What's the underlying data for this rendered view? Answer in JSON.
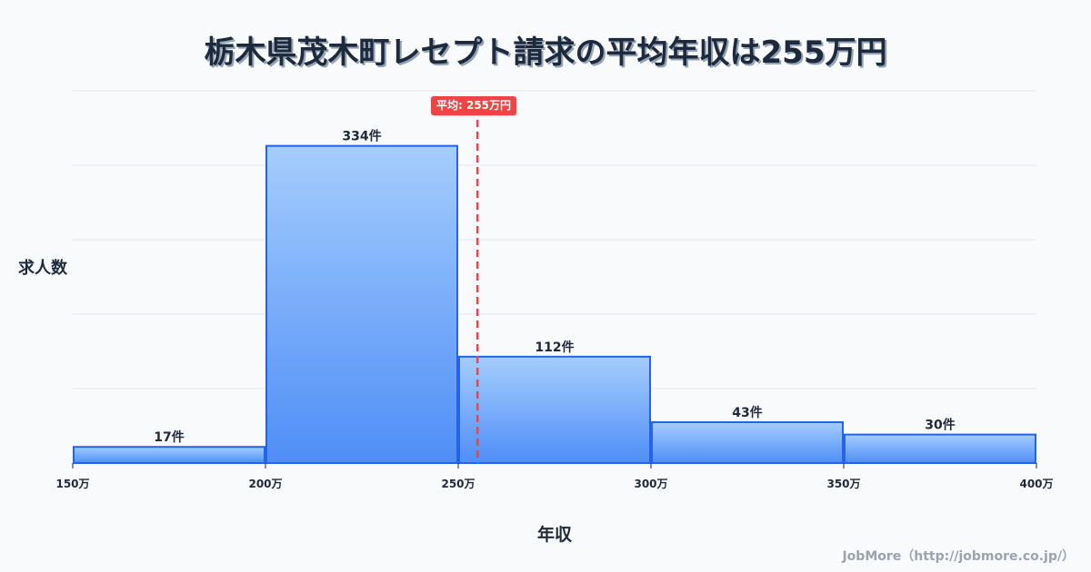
{
  "title": "栃木県茂木町レセプト請求の平均年収は255万円",
  "axes": {
    "ylabel": "求人数",
    "xlabel": "年収"
  },
  "average": {
    "label": "平均: 255万円",
    "value": 255,
    "color": "#ef4444"
  },
  "credit": "JobMore（http://jobmore.co.jp/）",
  "colors": {
    "bar_top": "#a5cdfd",
    "bar_bottom": "#4f8ef7",
    "bar_border": "#2563eb",
    "grid": "#e2e8f0",
    "background": "#f8fafc"
  },
  "chart_data": {
    "type": "bar",
    "title": "栃木県茂木町レセプト請求の平均年収は255万円",
    "xlabel": "年収",
    "ylabel": "求人数",
    "bins": [
      {
        "from": 150,
        "to": 200,
        "count": 17,
        "label": "17件"
      },
      {
        "from": 200,
        "to": 250,
        "count": 334,
        "label": "334件"
      },
      {
        "from": 250,
        "to": 300,
        "count": 112,
        "label": "112件"
      },
      {
        "from": 300,
        "to": 350,
        "count": 43,
        "label": "43件"
      },
      {
        "from": 350,
        "to": 400,
        "count": 30,
        "label": "30件"
      }
    ],
    "categories": [
      "150-200万",
      "200-250万",
      "250-300万",
      "300-350万",
      "350-400万"
    ],
    "values": [
      17,
      334,
      112,
      43,
      30
    ],
    "x_ticks": [
      "150万",
      "200万",
      "250万",
      "300万",
      "350万",
      "400万"
    ],
    "xlim": [
      150,
      400
    ],
    "ylim": [
      0,
      392
    ],
    "grid": true,
    "mean_line": {
      "value": 255,
      "label": "平均: 255万円",
      "style": "dashed",
      "color": "#ef4444"
    }
  }
}
